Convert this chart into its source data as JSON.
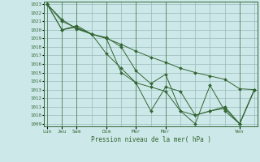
{
  "background_color": "#cce8e8",
  "grid_color": "#99bbbb",
  "line_color": "#336633",
  "marker": "D",
  "title": "Pression niveau de la mer( hPa )",
  "ylim": [
    1009,
    1023
  ],
  "yticks": [
    1009,
    1010,
    1011,
    1012,
    1013,
    1014,
    1015,
    1016,
    1017,
    1018,
    1019,
    1020,
    1021,
    1022,
    1023
  ],
  "xtick_positions": [
    0,
    1,
    2,
    4,
    6,
    8,
    13
  ],
  "xtick_labels": [
    "Lun",
    "Jeu",
    "Sam",
    "Dim",
    "Mar",
    "Mer",
    "Ven"
  ],
  "num_cols": 14,
  "series": [
    [
      1023.0,
      1021.2,
      1020.1,
      1019.5,
      1019.0,
      1018.3,
      1017.5,
      1016.8,
      1016.2,
      1015.5,
      1015.0,
      1014.6,
      1014.2,
      1013.1,
      1013.0
    ],
    [
      1023.0,
      1021.0,
      1020.2,
      1019.5,
      1019.1,
      1018.0,
      1015.2,
      1013.7,
      1014.8,
      1010.5,
      1009.0,
      1013.5,
      1010.5,
      1009.0,
      1013.0
    ],
    [
      1023.0,
      1020.0,
      1020.3,
      1019.5,
      1017.2,
      1015.5,
      1013.8,
      1010.5,
      1013.3,
      1012.8,
      1010.0,
      1010.5,
      1010.8,
      1009.0,
      1013.0
    ],
    [
      1023.0,
      1020.0,
      1020.5,
      1019.5,
      1019.0,
      1015.0,
      1013.8,
      1013.3,
      1012.8,
      1010.5,
      1010.0,
      1010.5,
      1011.0,
      1009.0,
      1013.0
    ]
  ]
}
